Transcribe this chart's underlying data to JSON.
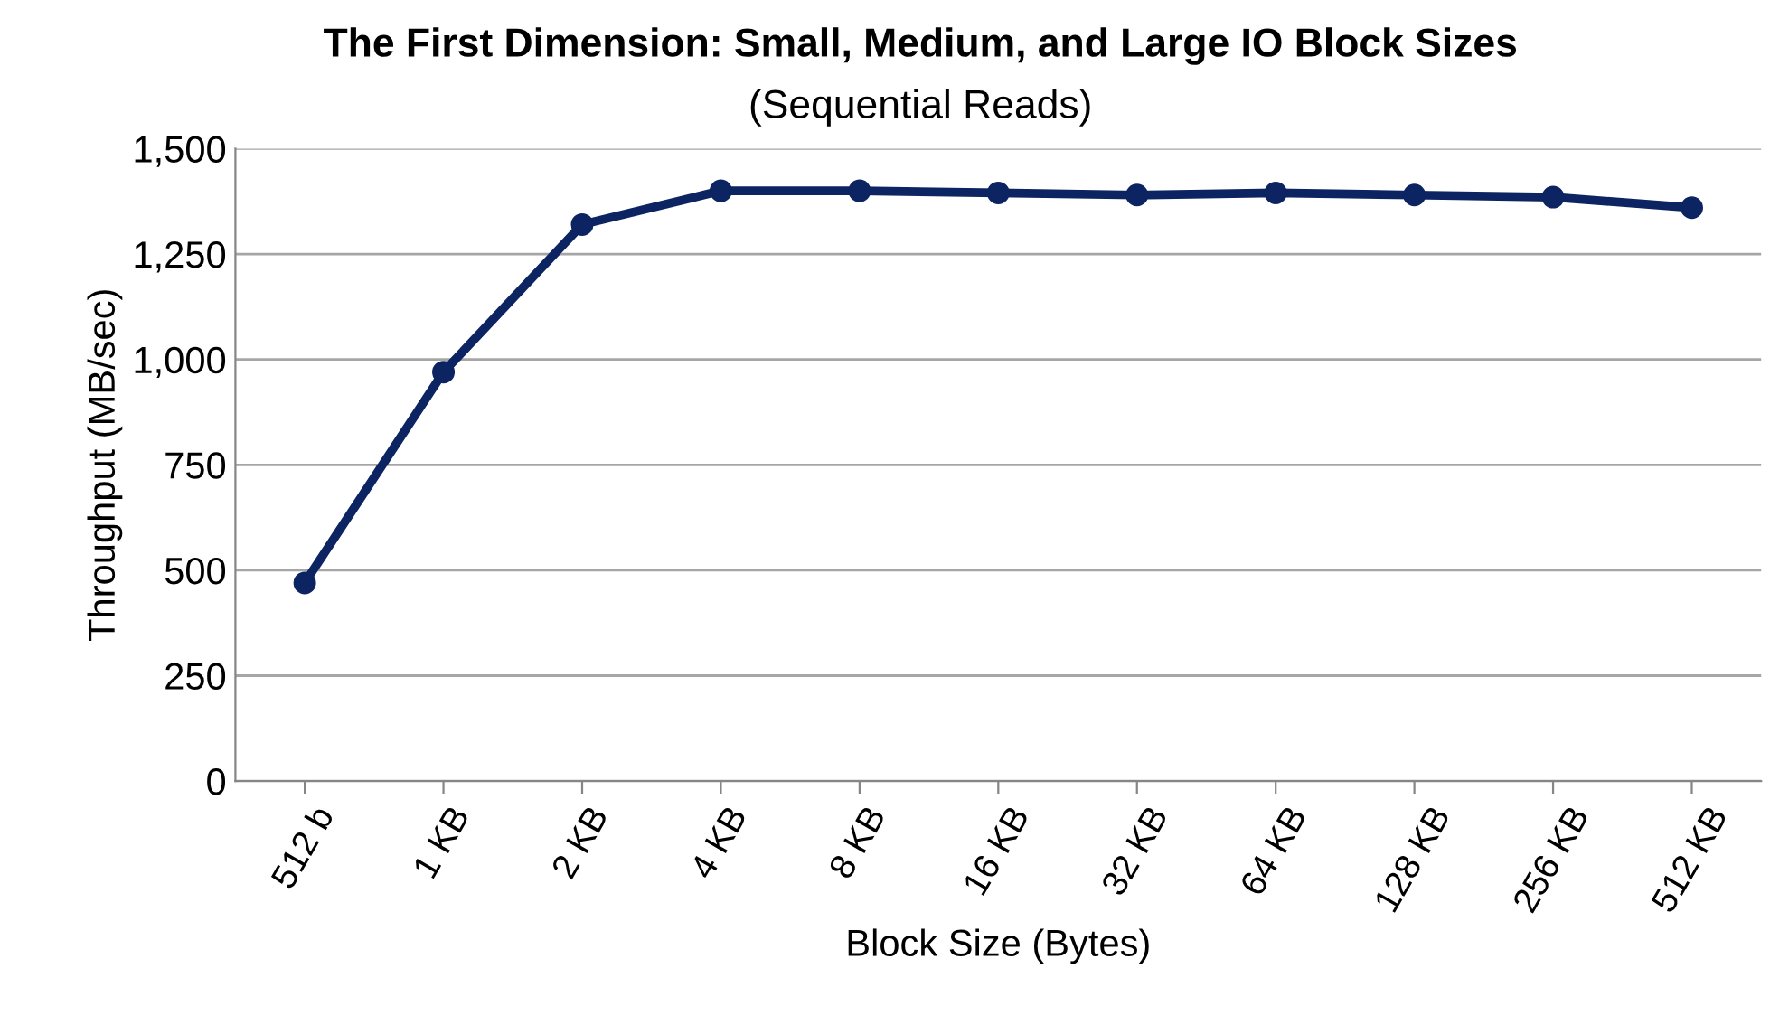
{
  "chart_data": {
    "type": "line",
    "title": "The First Dimension: Small, Medium, and Large IO Block Sizes",
    "subtitle": "(Sequential Reads)",
    "xlabel": "Block Size (Bytes)",
    "ylabel": "Throughput (MB/sec)",
    "categories": [
      "512 b",
      "1 KB",
      "2 KB",
      "4 KB",
      "8 KB",
      "16 KB",
      "32 KB",
      "64 KB",
      "128 KB",
      "256 KB",
      "512 KB"
    ],
    "series": [
      {
        "color": "#0c2461",
        "values": [
          470,
          970,
          1320,
          1400,
          1400,
          1395,
          1390,
          1395,
          1390,
          1385,
          1360
        ]
      }
    ],
    "ylim": [
      0,
      1500
    ],
    "yticks": [
      {
        "value": 0,
        "label": "0"
      },
      {
        "value": 250,
        "label": "250"
      },
      {
        "value": 500,
        "label": "500"
      },
      {
        "value": 750,
        "label": "750"
      },
      {
        "value": 1000,
        "label": "1,000"
      },
      {
        "value": 1250,
        "label": "1,250"
      },
      {
        "value": 1500,
        "label": "1,500"
      }
    ],
    "grid": "y",
    "marker": "circle",
    "line_style": "solid",
    "legend": false
  }
}
